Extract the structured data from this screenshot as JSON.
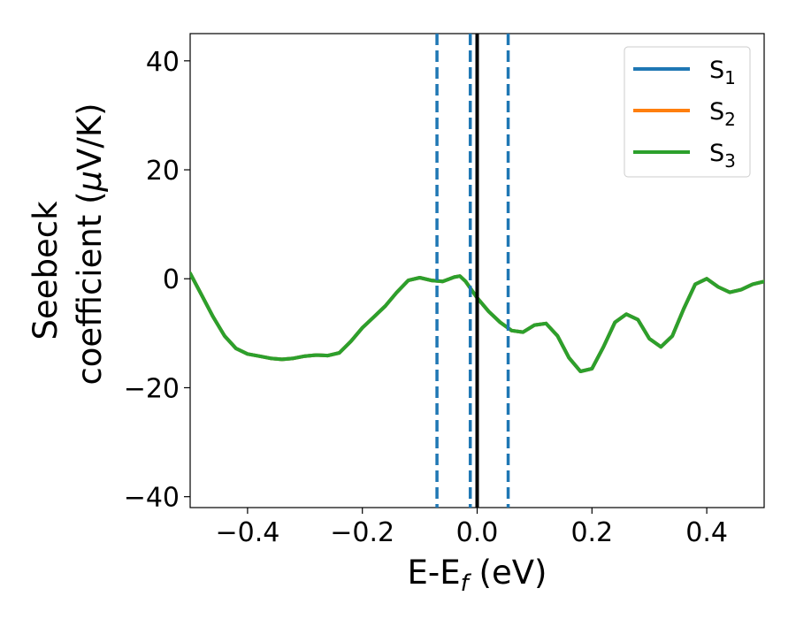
{
  "chart_data": {
    "type": "line",
    "xlabel": "E-E",
    "xlabel_sub": "f",
    "xlabel_unit": " (eV)",
    "ylabel_line1": "Seebeck",
    "ylabel_line2_pre": "coefficient  (",
    "ylabel_mu": "μ",
    "ylabel_line2_post": "V/K)",
    "xlim": [
      -0.5,
      0.5
    ],
    "ylim": [
      -42,
      45
    ],
    "xticks": [
      -0.4,
      -0.2,
      0.0,
      0.2,
      0.4
    ],
    "xtick_labels": [
      "−0.4",
      "−0.2",
      "0.0",
      "0.2",
      "0.4"
    ],
    "yticks": [
      40,
      20,
      0,
      -20,
      -40
    ],
    "ytick_labels": [
      "40",
      "20",
      "0",
      "−20",
      "−40"
    ],
    "grid": false,
    "legend_position": "top-right",
    "colors": {
      "S1": "#1f77b4",
      "S2": "#ff7f0e",
      "S3": "#2ca02c",
      "fermi_line": "#000000",
      "dashed_lines": "#1f77b4"
    },
    "series": [
      {
        "name": "S",
        "sub": "1",
        "color": "#1f77b4",
        "x": [
          -0.5,
          -0.48,
          -0.46,
          -0.44,
          -0.42,
          -0.4,
          -0.38,
          -0.36,
          -0.34,
          -0.32,
          -0.3,
          -0.28,
          -0.26,
          -0.24,
          -0.22,
          -0.2,
          -0.18,
          -0.16,
          -0.14,
          -0.12,
          -0.1,
          -0.08,
          -0.06,
          -0.04,
          -0.03,
          -0.02,
          -0.01,
          0.0,
          0.02,
          0.04,
          0.06,
          0.08,
          0.1,
          0.12,
          0.14,
          0.16,
          0.18,
          0.2,
          0.22,
          0.24,
          0.26,
          0.28,
          0.3,
          0.32,
          0.34,
          0.36,
          0.38,
          0.4,
          0.42,
          0.44,
          0.46,
          0.48,
          0.5
        ],
        "y": [
          1.0,
          -3.0,
          -7.0,
          -10.5,
          -12.8,
          -13.8,
          -14.2,
          -14.6,
          -14.8,
          -14.6,
          -14.2,
          -14.0,
          -14.1,
          -13.6,
          -11.5,
          -9.0,
          -7.0,
          -5.0,
          -2.5,
          -0.3,
          0.2,
          -0.3,
          -0.5,
          0.3,
          0.5,
          -0.5,
          -2.0,
          -3.5,
          -6.0,
          -8.0,
          -9.5,
          -9.8,
          -8.5,
          -8.2,
          -10.5,
          -14.5,
          -17.0,
          -16.5,
          -12.5,
          -8.0,
          -6.5,
          -7.5,
          -11.0,
          -12.5,
          -10.5,
          -5.5,
          -1.0,
          0.0,
          -1.5,
          -2.5,
          -2.0,
          -1.0,
          -0.5
        ]
      },
      {
        "name": "S",
        "sub": "2",
        "color": "#ff7f0e",
        "x": [
          -0.5,
          -0.48,
          -0.46,
          -0.44,
          -0.42,
          -0.4,
          -0.38,
          -0.36,
          -0.34,
          -0.32,
          -0.3,
          -0.28,
          -0.26,
          -0.24,
          -0.22,
          -0.2,
          -0.18,
          -0.16,
          -0.14,
          -0.12,
          -0.1,
          -0.08,
          -0.06,
          -0.04,
          -0.03,
          -0.02,
          -0.01,
          0.0,
          0.02,
          0.04,
          0.06,
          0.08,
          0.1,
          0.12,
          0.14,
          0.16,
          0.18,
          0.2,
          0.22,
          0.24,
          0.26,
          0.28,
          0.3,
          0.32,
          0.34,
          0.36,
          0.38,
          0.4,
          0.42,
          0.44,
          0.46,
          0.48,
          0.5
        ],
        "y": [
          1.0,
          -3.0,
          -7.0,
          -10.5,
          -12.8,
          -13.8,
          -14.2,
          -14.6,
          -14.8,
          -14.6,
          -14.2,
          -14.0,
          -14.1,
          -13.6,
          -11.5,
          -9.0,
          -7.0,
          -5.0,
          -2.5,
          -0.3,
          0.2,
          -0.3,
          -0.5,
          0.3,
          0.5,
          -0.5,
          -2.0,
          -3.5,
          -6.0,
          -8.0,
          -9.5,
          -9.8,
          -8.5,
          -8.2,
          -10.5,
          -14.5,
          -17.0,
          -16.5,
          -12.5,
          -8.0,
          -6.5,
          -7.5,
          -11.0,
          -12.5,
          -10.5,
          -5.5,
          -1.0,
          0.0,
          -1.5,
          -2.5,
          -2.0,
          -1.0,
          -0.5
        ]
      },
      {
        "name": "S",
        "sub": "3",
        "color": "#2ca02c",
        "x": [
          -0.5,
          -0.48,
          -0.46,
          -0.44,
          -0.42,
          -0.4,
          -0.38,
          -0.36,
          -0.34,
          -0.32,
          -0.3,
          -0.28,
          -0.26,
          -0.24,
          -0.22,
          -0.2,
          -0.18,
          -0.16,
          -0.14,
          -0.12,
          -0.1,
          -0.08,
          -0.06,
          -0.04,
          -0.03,
          -0.02,
          -0.01,
          0.0,
          0.02,
          0.04,
          0.06,
          0.08,
          0.1,
          0.12,
          0.14,
          0.16,
          0.18,
          0.2,
          0.22,
          0.24,
          0.26,
          0.28,
          0.3,
          0.32,
          0.34,
          0.36,
          0.38,
          0.4,
          0.42,
          0.44,
          0.46,
          0.48,
          0.5
        ],
        "y": [
          1.0,
          -3.0,
          -7.0,
          -10.5,
          -12.8,
          -13.8,
          -14.2,
          -14.6,
          -14.8,
          -14.6,
          -14.2,
          -14.0,
          -14.1,
          -13.6,
          -11.5,
          -9.0,
          -7.0,
          -5.0,
          -2.5,
          -0.3,
          0.2,
          -0.3,
          -0.5,
          0.3,
          0.5,
          -0.5,
          -2.0,
          -3.5,
          -6.0,
          -8.0,
          -9.5,
          -9.8,
          -8.5,
          -8.2,
          -10.5,
          -14.5,
          -17.0,
          -16.5,
          -12.5,
          -8.0,
          -6.5,
          -7.5,
          -11.0,
          -12.5,
          -10.5,
          -5.5,
          -1.0,
          0.0,
          -1.5,
          -2.5,
          -2.0,
          -1.0,
          -0.5
        ]
      }
    ],
    "vertical_lines": [
      {
        "x": -0.07,
        "style": "dashed",
        "color": "#1f77b4"
      },
      {
        "x": -0.012,
        "style": "dashed",
        "color": "#1f77b4"
      },
      {
        "x": 0.054,
        "style": "dashed",
        "color": "#1f77b4"
      },
      {
        "x": 0.0,
        "style": "solid",
        "color": "#000000"
      }
    ]
  }
}
